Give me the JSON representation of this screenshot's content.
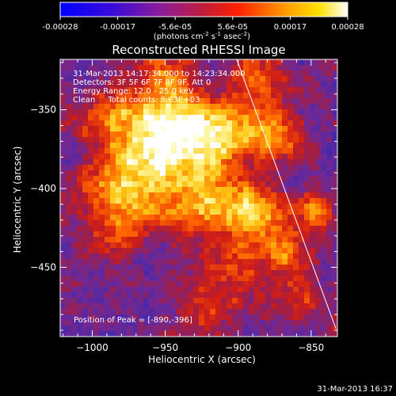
{
  "colorbar": {
    "ticks": [
      "-0.00028",
      "-0.00017",
      "-5.6e-05",
      "5.6e-05",
      "0.00017",
      "0.00028"
    ],
    "label_main": "(photons cm",
    "label_exp1": "-2",
    "label_mid": " s",
    "label_exp2": "-1",
    "label_end": " asec",
    "label_exp3": "-2",
    "label_close": ")",
    "range": [
      -0.00028,
      0.00028
    ]
  },
  "info": {
    "time_range": "31-Mar-2013 14:17:34.000 to 14:23:34.000",
    "detectors": "Detectors: 3F 5F 6F 7F 8F 9F, Att 0",
    "energy": "Energy Range: 12.0 - 25.0 keV",
    "clean": "Clean     Total counts: 8.63E+03",
    "peak": "Position of Peak = [-890,-396]"
  },
  "footer": {
    "timestamp": "31-Mar-2013 16:37"
  },
  "chart_data": {
    "type": "heatmap",
    "title": "Reconstructed RHESSI Image",
    "xlabel": "Heliocentric X (arcsec)",
    "ylabel": "Heliocentric Y (arcsec)",
    "xlim": [
      -1022,
      -832
    ],
    "ylim": [
      -494,
      -318
    ],
    "x_ticks": [
      -1000,
      -950,
      -900,
      -850
    ],
    "y_ticks": [
      -350,
      -400,
      -450
    ],
    "x_tick_labels": [
      "−1000",
      "−950",
      "−900",
      "−850"
    ],
    "y_tick_labels": [
      "−350",
      "−400",
      "−450"
    ],
    "peak_position": [
      -890,
      -396
    ],
    "limb_line": [
      [
        -901,
        -318
      ],
      [
        -833,
        -489
      ]
    ],
    "colormap": "heat"
  }
}
